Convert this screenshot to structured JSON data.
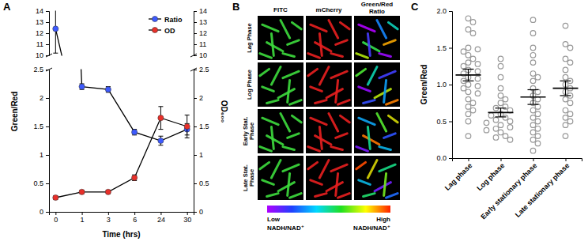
{
  "chart_data": [
    {
      "type": "line",
      "panel": "A",
      "x_label": "Time (hrs)",
      "y_label": "Green/Red",
      "y2_label": "OD₆₀₀",
      "categories": [
        "0",
        "1",
        "3",
        "6",
        "24",
        "30"
      ],
      "segments": [
        {
          "ylim": [
            0,
            2.5
          ],
          "yticks": [
            0,
            0.5,
            1,
            1.5,
            2,
            2.5
          ],
          "y2lim": [
            0,
            2.5
          ],
          "y2ticks": [
            0,
            0.5,
            1,
            1.5,
            2,
            2.5
          ]
        },
        {
          "ylim": [
            10,
            14
          ],
          "yticks": [
            10,
            11,
            12,
            13,
            14
          ],
          "y2lim": [
            10,
            14
          ],
          "y2ticks": [
            10,
            11,
            12,
            13,
            14
          ]
        }
      ],
      "legend": "upper right",
      "marker": "circle",
      "line_style": "solid",
      "series": [
        {
          "name": "Ratio",
          "color": "#3d5afe",
          "values": [
            12.4,
            2.2,
            2.15,
            1.4,
            1.25,
            1.45
          ],
          "errors": [
            2.2,
            0.05,
            0.05,
            0.05,
            0.08,
            0.1
          ]
        },
        {
          "name": "OD",
          "color": "#e8302a",
          "axis": "y2",
          "values": [
            0.25,
            0.35,
            0.35,
            0.6,
            1.65,
            1.5
          ],
          "errors": [
            0.03,
            0.03,
            0.03,
            0.05,
            0.2,
            0.2
          ]
        }
      ]
    },
    {
      "type": "image_grid",
      "panel": "B",
      "columns": [
        "FITC",
        "mCherry",
        "Green/Red Ratio"
      ],
      "rows": [
        "Lag Phase",
        "Log Phase",
        "Early Stat. Phase",
        "Late Stat. Phase"
      ],
      "colorbar": {
        "low": [
          "Low",
          "NADH/NAD⁺"
        ],
        "high": [
          "High",
          "NADH/NAD⁺"
        ]
      }
    },
    {
      "type": "scatter",
      "panel": "C",
      "y_label": "Green/Red",
      "marker": "circle",
      "color": "#999999",
      "categories": [
        "Lag phase",
        "Log phase",
        "Early stationary phase",
        "Late stationary phase"
      ],
      "ylim": [
        0,
        2.0
      ],
      "yticks": [
        {
          "value": 0,
          "label": "0.0"
        },
        {
          "value": 0.5,
          "label": "0.5"
        },
        {
          "value": 1,
          "label": "1.0"
        },
        {
          "value": 1.5,
          "label": "1.5"
        },
        {
          "value": 2,
          "label": "2.0"
        }
      ],
      "values": [
        [
          1.9,
          1.85,
          1.75,
          1.7,
          1.5,
          1.48,
          1.45,
          1.4,
          1.35,
          1.3,
          1.28,
          1.25,
          1.2,
          1.18,
          1.15,
          1.1,
          1.08,
          1.05,
          1.0,
          0.98,
          0.95,
          0.9,
          0.88,
          0.8,
          0.75,
          0.7,
          0.65,
          0.6,
          0.5,
          0.3
        ],
        [
          1.35,
          1.25,
          1.1,
          0.95,
          0.85,
          0.8,
          0.75,
          0.7,
          0.68,
          0.65,
          0.6,
          0.58,
          0.55,
          0.52,
          0.5,
          0.48,
          0.45,
          0.42,
          0.4,
          0.38,
          0.35,
          0.3,
          0.28,
          0.25
        ],
        [
          1.88,
          1.7,
          1.5,
          1.4,
          1.3,
          1.15,
          1.1,
          1.05,
          0.95,
          0.9,
          0.85,
          0.8,
          0.75,
          0.7,
          0.65,
          0.6,
          0.55,
          0.5,
          0.45,
          0.4,
          0.35,
          0.3,
          0.25,
          0.2,
          0.1
        ],
        [
          1.8,
          1.55,
          1.5,
          1.35,
          1.3,
          1.2,
          1.1,
          1.05,
          1.0,
          0.95,
          0.9,
          0.85,
          0.8,
          0.75,
          0.65,
          0.6,
          0.55,
          0.5,
          0.45,
          0.3
        ]
      ],
      "means": [
        1.13,
        0.62,
        0.83,
        0.95
      ],
      "errors": [
        0.08,
        0.06,
        0.1,
        0.1
      ]
    }
  ]
}
